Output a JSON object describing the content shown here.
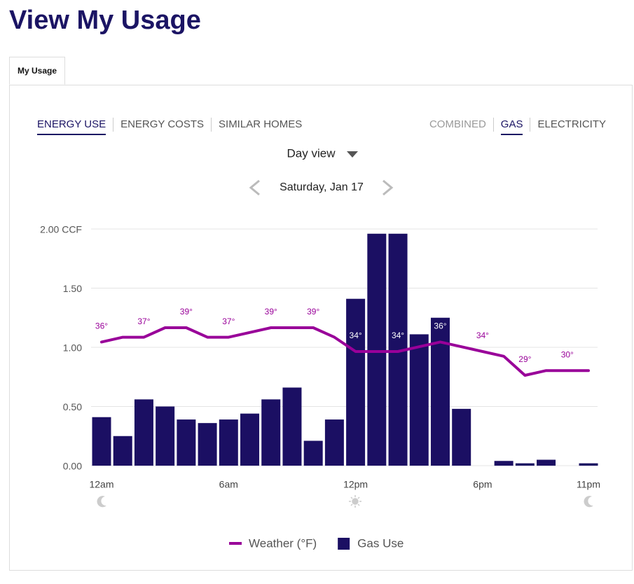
{
  "header": {
    "title": "View My Usage"
  },
  "tabs": [
    "My Usage"
  ],
  "view_tabs": [
    "ENERGY USE",
    "ENERGY COSTS",
    "SIMILAR HOMES"
  ],
  "fuel_tabs": [
    "COMBINED",
    "GAS",
    "ELECTRICITY"
  ],
  "view_select": "Day view",
  "date": "Saturday, Jan 17",
  "chart_data": {
    "type": "bar",
    "categories": [
      "12am",
      null,
      null,
      null,
      null,
      null,
      "6am",
      null,
      null,
      null,
      null,
      null,
      "12pm",
      null,
      null,
      null,
      null,
      null,
      "6pm",
      null,
      null,
      null,
      null,
      "11pm"
    ],
    "series": [
      {
        "name": "Gas Use",
        "type": "bar",
        "color": "#1b0f63",
        "values": [
          0.41,
          0.25,
          0.56,
          0.5,
          0.39,
          0.36,
          0.39,
          0.44,
          0.56,
          0.66,
          0.21,
          0.39,
          1.41,
          1.96,
          1.96,
          1.11,
          1.25,
          0.48,
          0,
          0.04,
          0.02,
          0.05,
          0,
          0.02
        ]
      },
      {
        "name": "Weather (°F)",
        "type": "line",
        "axis": "y2",
        "color": "#990099",
        "values": [
          36,
          37,
          37,
          39,
          39,
          37,
          37,
          38,
          39,
          39,
          39,
          37,
          34,
          34,
          34,
          35,
          36,
          35,
          34,
          33,
          29,
          30,
          30,
          30
        ],
        "value_labels": [
          "36°",
          null,
          "37°",
          null,
          "39°",
          null,
          "37°",
          null,
          "39°",
          null,
          "39°",
          null,
          "34°",
          null,
          "34°",
          null,
          "36°",
          null,
          "34°",
          null,
          "29°",
          null,
          "30°",
          null
        ]
      }
    ],
    "ylim": [
      0,
      2
    ],
    "yticks": [
      {
        "value": 0,
        "label": "0.00"
      },
      {
        "value": 0.5,
        "label": "0.50"
      },
      {
        "value": 1,
        "label": "1.00"
      },
      {
        "value": 1.5,
        "label": "1.50"
      },
      {
        "value": 2,
        "label": "2.00 CCF"
      }
    ],
    "grid": true
  }
}
